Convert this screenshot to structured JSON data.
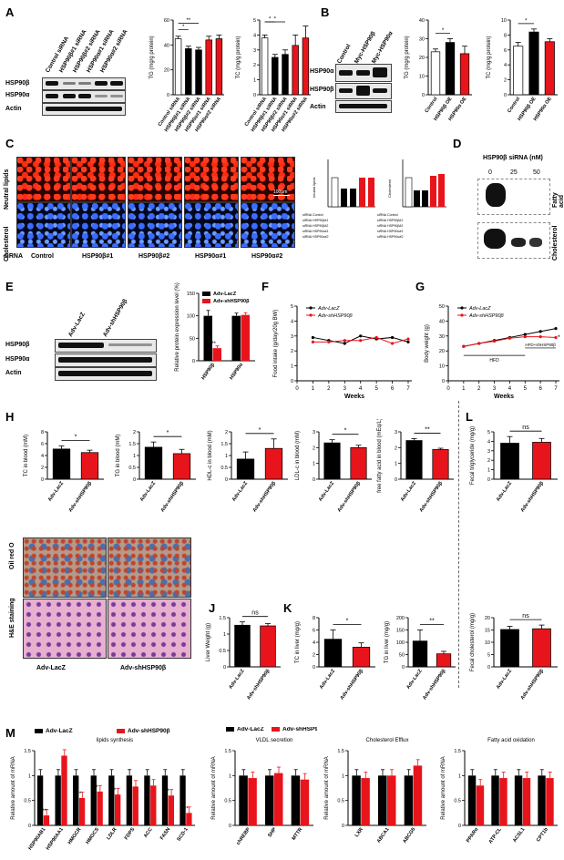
{
  "panels": {
    "A": "A",
    "B": "B",
    "C": "C",
    "D": "D",
    "E": "E",
    "F": "F",
    "G": "G",
    "H": "H",
    "J": "J",
    "K": "K",
    "L": "L",
    "M": "M"
  },
  "blotA": {
    "cols": [
      "Control siRNA",
      "HSP90β#1 siRNA",
      "HSP90β#2 siRNA",
      "HSP90α#1 siRNA",
      "HSP90α#2 siRNA"
    ],
    "rows": [
      "HSP90β",
      "HSP90α",
      "Actin"
    ]
  },
  "blotB": {
    "cols": [
      "Control",
      "Myc-HSP90β",
      "Myc-HSP90α"
    ],
    "rows": [
      "HSP90α",
      "HSP90β",
      "Actin"
    ]
  },
  "blotE": {
    "groups": [
      "Adv-LacZ",
      "Adv-shHSP90β"
    ],
    "rows": [
      "HSP90β",
      "HSP90α",
      "Actin"
    ]
  },
  "panelC": {
    "row_labels": [
      "Neutral lipids",
      "Cholesterol"
    ],
    "col_labels": [
      "siRNA",
      "Control",
      "HSP90β#1",
      "HSP90β#2",
      "HSP90α#1",
      "HSP90α#2"
    ],
    "scale": "100μm",
    "mini_titles": [
      "neutral lipids",
      "Cholesterol"
    ],
    "legend_rows": [
      "siRNA Control",
      "siRNA HSP90β#1",
      "siRNA HSP90β#2",
      "siRNA HSP90α#1",
      "siRNA HSP90α#2"
    ]
  },
  "panelD": {
    "title": "HSP90β siRNA (nM)",
    "doses": [
      "0",
      "25",
      "50"
    ],
    "rows": [
      "Fatty acid",
      "Cholesterol"
    ]
  },
  "histo": {
    "row_labels": [
      "Oil red O",
      "H&E staining"
    ],
    "col_labels": [
      "Adv-LacZ",
      "Adv-shHSP90β"
    ]
  },
  "colors": {
    "black": "#000000",
    "red": "#e8141b",
    "white": "#ffffff"
  },
  "chart_data": [
    {
      "id": "A-TG",
      "type": "bar",
      "ylabel": "TG (mg/g protein)",
      "categories": [
        "Control siRNA",
        "HSP90β#1 siRNA",
        "HSP90β#2 siRNA",
        "HSP90α#1 siRNA",
        "HSP90α#2 siRNA"
      ],
      "values": [
        45,
        37,
        36,
        44,
        45
      ],
      "errors": [
        2,
        2,
        2,
        3,
        3
      ],
      "ylim": [
        0,
        60
      ],
      "yticks": [
        0,
        20,
        40,
        60
      ],
      "fill": [
        "white",
        "black",
        "black",
        "red",
        "red"
      ],
      "sig": [
        "*",
        "**"
      ]
    },
    {
      "id": "A-TC",
      "type": "bar",
      "ylabel": "TC (mg/g protein)",
      "categories": [
        "Control siRNA",
        "HSP90β#1 siRNA",
        "HSP90β#2 siRNA",
        "HSP90α#1 siRNA",
        "HSP90α#2 siRNA"
      ],
      "values": [
        3.8,
        2.5,
        2.7,
        3.3,
        3.8
      ],
      "errors": [
        0.2,
        0.2,
        0.3,
        0.7,
        0.8
      ],
      "ylim": [
        0,
        5
      ],
      "yticks": [
        0,
        1,
        2,
        3,
        4,
        5
      ],
      "fill": [
        "white",
        "black",
        "black",
        "red",
        "red"
      ],
      "sig": [
        "*",
        "*"
      ]
    },
    {
      "id": "B-TG",
      "type": "bar",
      "ylabel": "TG (mg/g protein)",
      "categories": [
        "Control",
        "HSP90β OE",
        "HSP90α OE"
      ],
      "values": [
        23,
        28,
        22
      ],
      "errors": [
        1.5,
        2,
        4
      ],
      "ylim": [
        0,
        40
      ],
      "yticks": [
        0,
        10,
        20,
        30,
        40
      ],
      "fill": [
        "white",
        "black",
        "red"
      ],
      "sig": [
        "*"
      ]
    },
    {
      "id": "B-TC",
      "type": "bar",
      "ylabel": "TC (mg/g protein)",
      "categories": [
        "Control",
        "HSP90β OE",
        "HSP90α OE"
      ],
      "values": [
        6.5,
        8.4,
        7.1
      ],
      "errors": [
        0.5,
        0.4,
        0.4
      ],
      "ylim": [
        0,
        10
      ],
      "yticks": [
        0,
        2,
        4,
        6,
        8,
        10
      ],
      "fill": [
        "white",
        "black",
        "red"
      ],
      "sig": [
        "*"
      ]
    },
    {
      "id": "E-quant",
      "type": "bar",
      "ylabel": "Relative protein expression level (%)",
      "categories": [
        "HSP90β",
        "HSP90α"
      ],
      "series": [
        {
          "name": "Adv-LacZ",
          "values": [
            100,
            100
          ]
        },
        {
          "name": "Adv-shHSP90β",
          "values": [
            28,
            102
          ]
        }
      ],
      "errors": [
        [
          12,
          6
        ],
        [
          5,
          5
        ]
      ],
      "ylim": [
        0,
        150
      ],
      "yticks": [
        0,
        50,
        100,
        150
      ],
      "sig": [
        "***"
      ]
    },
    {
      "id": "F",
      "type": "line",
      "xlabel": "Weeks",
      "ylabel": "Food intake (g/day/20g BW)",
      "x": [
        1,
        2,
        3,
        4,
        5,
        6,
        7
      ],
      "series": [
        {
          "name": "Adv-LacZ",
          "values": [
            2.9,
            2.7,
            2.5,
            3.0,
            2.8,
            2.9,
            2.6
          ]
        },
        {
          "name": "Adv-shHSP90β",
          "values": [
            2.6,
            2.6,
            2.7,
            2.7,
            2.9,
            2.5,
            2.8
          ]
        }
      ],
      "ylim": [
        0,
        5
      ],
      "yticks": [
        0,
        1,
        2,
        3,
        4,
        5
      ],
      "xlim": [
        0,
        7
      ]
    },
    {
      "id": "G",
      "type": "line",
      "xlabel": "Weeks",
      "ylabel": "Body weight (g)",
      "x": [
        1,
        2,
        3,
        4,
        5,
        6,
        7
      ],
      "series": [
        {
          "name": "Adv-LacZ",
          "values": [
            23,
            25,
            27,
            29,
            31,
            33,
            35
          ]
        },
        {
          "name": "Adv-shHSP90β",
          "values": [
            23,
            25,
            26.5,
            28.5,
            29.5,
            29.5,
            29
          ]
        }
      ],
      "ylim": [
        0,
        50
      ],
      "yticks": [
        0,
        10,
        20,
        30,
        40,
        50
      ],
      "xlim": [
        0,
        7
      ],
      "annotations": [
        "HFD",
        "HFD+shHSP90β"
      ],
      "sig": [
        "*"
      ]
    },
    {
      "id": "H-TC",
      "type": "bar",
      "ylabel": "TC in blood (mM)",
      "categories": [
        "Adv-LacZ",
        "Adv-shHSP90β"
      ],
      "values": [
        5.1,
        4.5
      ],
      "errors": [
        0.5,
        0.4
      ],
      "ylim": [
        0,
        8
      ],
      "yticks": [
        0,
        2,
        4,
        6,
        8
      ],
      "fill": [
        "black",
        "red"
      ],
      "sig": [
        "*"
      ]
    },
    {
      "id": "H-TG",
      "type": "bar",
      "ylabel": "TG in blood (mM)",
      "categories": [
        "Adv-LacZ",
        "Adv-shHSP90β"
      ],
      "values": [
        1.35,
        1.08
      ],
      "errors": [
        0.22,
        0.18
      ],
      "ylim": [
        0,
        2.0
      ],
      "yticks": [
        0,
        0.5,
        1.0,
        1.5,
        2.0
      ],
      "fill": [
        "black",
        "red"
      ],
      "sig": [
        "*"
      ]
    },
    {
      "id": "H-HDL",
      "type": "bar",
      "ylabel": "HDL-c in blood (mM)",
      "categories": [
        "Adv-LacZ",
        "Adv-shHSP90β"
      ],
      "values": [
        0.85,
        1.3
      ],
      "errors": [
        0.3,
        0.4
      ],
      "ylim": [
        0,
        2.0
      ],
      "yticks": [
        0,
        0.5,
        1.0,
        1.5,
        2.0
      ],
      "fill": [
        "black",
        "red"
      ],
      "sig": [
        "*"
      ]
    },
    {
      "id": "H-LDL",
      "type": "bar",
      "ylabel": "LDL-c in blood (mM)",
      "categories": [
        "Adv-LacZ",
        "Adv-shHSP90β"
      ],
      "values": [
        2.3,
        2.0
      ],
      "errors": [
        0.2,
        0.15
      ],
      "ylim": [
        0,
        3
      ],
      "yticks": [
        0,
        1,
        2,
        3
      ],
      "fill": [
        "black",
        "red"
      ],
      "sig": [
        "*"
      ]
    },
    {
      "id": "H-FFA",
      "type": "bar",
      "ylabel": "free fatty acid in blood (mEq/L)",
      "categories": [
        "Adv-LacZ",
        "Adv-shHSP90β"
      ],
      "values": [
        2.45,
        1.88
      ],
      "errors": [
        0.12,
        0.08
      ],
      "ylim": [
        0,
        3
      ],
      "yticks": [
        0,
        1,
        2,
        3
      ],
      "fill": [
        "black",
        "red"
      ],
      "sig": [
        "**"
      ]
    },
    {
      "id": "L-TG",
      "type": "bar",
      "ylabel": "Fecal triglyceride (mg/g)",
      "categories": [
        "Adv-LacZ",
        "Adv-shHSP90β"
      ],
      "values": [
        3.8,
        3.9
      ],
      "errors": [
        0.7,
        0.4
      ],
      "ylim": [
        0,
        5
      ],
      "yticks": [
        0,
        1,
        2,
        3,
        4,
        5
      ],
      "fill": [
        "black",
        "red"
      ],
      "sig": [
        "ns"
      ]
    },
    {
      "id": "J",
      "type": "bar",
      "ylabel": "Liver Weight (g)",
      "categories": [
        "Adv-LacZ",
        "Adv-shHSP90β"
      ],
      "values": [
        1.27,
        1.25
      ],
      "errors": [
        0.1,
        0.07
      ],
      "ylim": [
        0,
        1.5
      ],
      "yticks": [
        0,
        0.5,
        1.0,
        1.5
      ],
      "fill": [
        "black",
        "red"
      ],
      "sig": [
        "ns"
      ]
    },
    {
      "id": "K-TC",
      "type": "bar",
      "ylabel": "TC in liver (mg/g)",
      "categories": [
        "Adv-LacZ",
        "Adv-shHSP90β"
      ],
      "values": [
        4.5,
        3.2
      ],
      "errors": [
        1.5,
        0.7
      ],
      "ylim": [
        0,
        8
      ],
      "yticks": [
        0,
        2,
        4,
        6,
        8
      ],
      "fill": [
        "black",
        "red"
      ],
      "sig": [
        "*"
      ]
    },
    {
      "id": "K-TG",
      "type": "bar",
      "ylabel": "TG in liver (mg/g)",
      "categories": [
        "Adv-LacZ",
        "Adv-shHSP90β"
      ],
      "values": [
        105,
        53
      ],
      "errors": [
        45,
        10
      ],
      "ylim": [
        0,
        200
      ],
      "yticks": [
        0,
        50,
        100,
        150,
        200
      ],
      "fill": [
        "black",
        "red"
      ],
      "sig": [
        "**"
      ]
    },
    {
      "id": "L-TC",
      "type": "bar",
      "ylabel": "Fecal cholesterol (mg/g)",
      "categories": [
        "Adv-LacZ",
        "Adv-shHSP90β"
      ],
      "values": [
        15.2,
        15.5
      ],
      "errors": [
        1.3,
        1.5
      ],
      "ylim": [
        0,
        20
      ],
      "yticks": [
        0,
        5,
        10,
        15,
        20
      ],
      "fill": [
        "black",
        "red"
      ],
      "sig": [
        "ns"
      ]
    },
    {
      "id": "M-lipid",
      "type": "bar",
      "title": "lipids synthesis",
      "ylabel": "Relative amount of mRNA",
      "categories": [
        "HSP90AB1",
        "HSP90AA1",
        "HMGCR",
        "HMGCS",
        "LDLR",
        "FDPS",
        "ACC",
        "FASN",
        "SCD-1"
      ],
      "series": [
        {
          "name": "Adv-LacZ",
          "values": [
            1.0,
            1.0,
            1.0,
            1.0,
            1.0,
            1.0,
            1.0,
            1.0,
            1.0
          ]
        },
        {
          "name": "Adv-shHSP90β",
          "values": [
            0.2,
            1.4,
            0.55,
            0.68,
            0.62,
            0.78,
            0.8,
            0.6,
            0.25
          ]
        }
      ],
      "ylim": [
        0,
        1.5
      ],
      "yticks": [
        0.0,
        0.5,
        1.0,
        1.5
      ],
      "sig": [
        "***",
        "",
        "**",
        "*",
        "*",
        "",
        "",
        "*",
        "**"
      ],
      "legend": "top"
    },
    {
      "id": "M-vldl",
      "type": "bar",
      "title": "VLDL secretion",
      "ylabel": "Relative amount of mRNA",
      "categories": [
        "chREBP",
        "SHP",
        "MTTR"
      ],
      "series": [
        {
          "name": "Adv-LacZ",
          "values": [
            1.0,
            1.0,
            1.0
          ]
        },
        {
          "name": "Adv-shHSP90β",
          "values": [
            0.95,
            1.05,
            0.92
          ]
        }
      ],
      "ylim": [
        0,
        1.5
      ],
      "yticks": [
        0.0,
        0.5,
        1.0,
        1.5
      ]
    },
    {
      "id": "M-chol",
      "type": "bar",
      "title": "Cholesterol Efflux",
      "ylabel": "Relative amount of mRNA",
      "categories": [
        "LXR",
        "ABCA1",
        "ABCG5"
      ],
      "series": [
        {
          "name": "Adv-LacZ",
          "values": [
            1.0,
            1.0,
            1.0
          ]
        },
        {
          "name": "Adv-shHSP90β",
          "values": [
            0.95,
            1.0,
            1.2
          ]
        }
      ],
      "ylim": [
        0,
        1.5
      ],
      "yticks": [
        0.0,
        0.5,
        1.0,
        1.5
      ]
    },
    {
      "id": "M-fa",
      "type": "bar",
      "title": "Fatty acid oxidation",
      "ylabel": "Relative amount of mRNA",
      "categories": [
        "PPARα",
        "ATP-CL",
        "ACSL1",
        "CPT1b"
      ],
      "series": [
        {
          "name": "Adv-LacZ",
          "values": [
            1.0,
            1.0,
            1.0,
            1.0
          ]
        },
        {
          "name": "Adv-shHSP90β",
          "values": [
            0.8,
            0.95,
            0.95,
            0.95
          ]
        }
      ],
      "ylim": [
        0,
        1.5
      ],
      "yticks": [
        0.0,
        0.5,
        1.0,
        1.5
      ]
    }
  ]
}
